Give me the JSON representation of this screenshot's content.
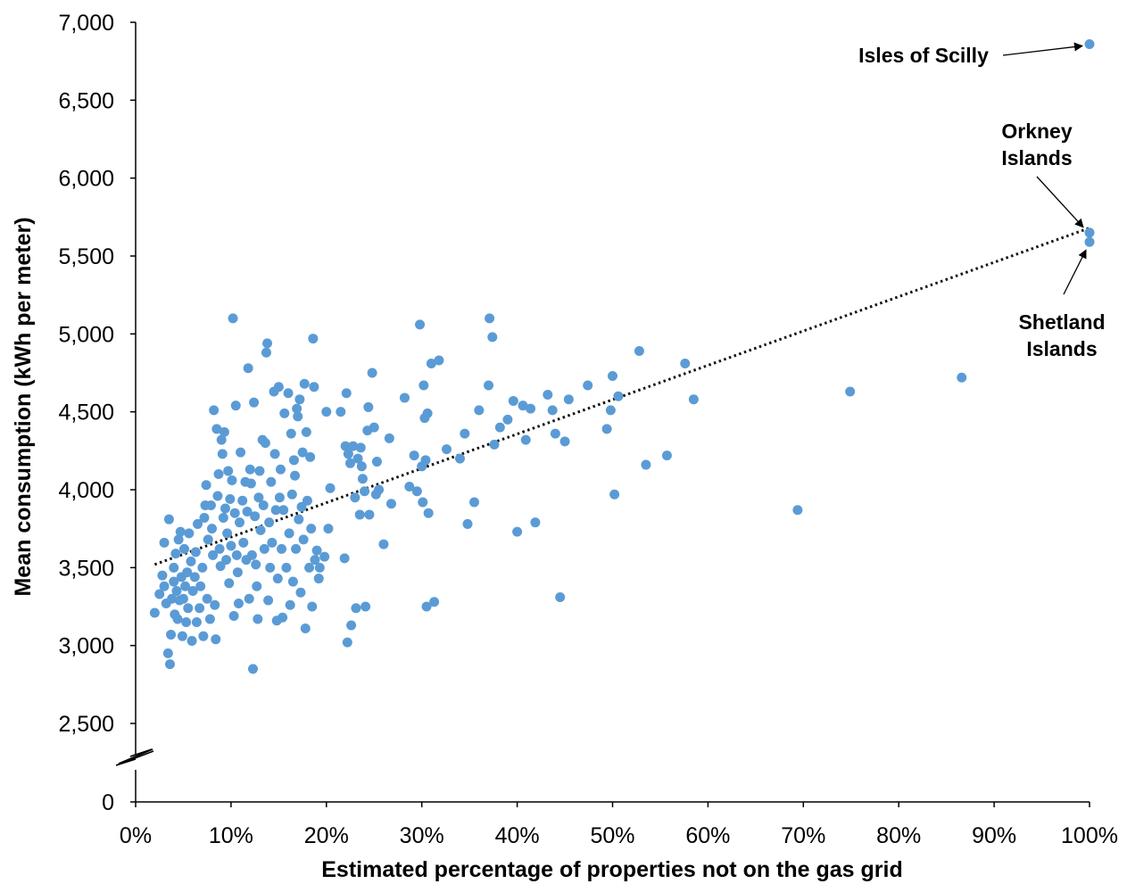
{
  "chart_data": {
    "type": "scatter",
    "xlabel": "Estimated percentage of properties not on the gas grid",
    "ylabel": "Mean consumption (kWh per meter)",
    "x_unit": "percent",
    "x_ticks": [
      "0%",
      "10%",
      "20%",
      "30%",
      "40%",
      "50%",
      "60%",
      "70%",
      "80%",
      "90%",
      "100%"
    ],
    "y_ticks": [
      "0",
      "2,500",
      "3,000",
      "3,500",
      "4,000",
      "4,500",
      "5,000",
      "5,500",
      "6,000",
      "6,500",
      "7,000"
    ],
    "xlim": [
      0,
      100
    ],
    "ylim": [
      2500,
      7000
    ],
    "y_axis_break": "between 0 and 2,500",
    "marker_color": "#5b9bd5",
    "grid": false,
    "trendline": {
      "style": "dotted",
      "color": "#111111",
      "start": [
        2,
        3520
      ],
      "end": [
        100,
        5680
      ]
    },
    "annotations": [
      {
        "text": "Isles of Scilly",
        "lines": [
          "Isles of Scilly"
        ],
        "points_to": [
          100,
          6860
        ]
      },
      {
        "text": "Orkney Islands",
        "lines": [
          "Orkney",
          "Islands"
        ],
        "points_to": [
          100,
          5650
        ]
      },
      {
        "text": "Shetland Islands",
        "lines": [
          "Shetland",
          "Islands"
        ],
        "points_to": [
          100,
          5590
        ]
      }
    ],
    "points": [
      [
        2,
        3210
      ],
      [
        2.5,
        3330
      ],
      [
        2.8,
        3450
      ],
      [
        3,
        3380
      ],
      [
        3,
        3660
      ],
      [
        3.2,
        3270
      ],
      [
        3.4,
        2950
      ],
      [
        3.5,
        3810
      ],
      [
        3.6,
        2880
      ],
      [
        3.7,
        3070
      ],
      [
        3.8,
        3300
      ],
      [
        4,
        3410
      ],
      [
        4,
        3500
      ],
      [
        4.1,
        3200
      ],
      [
        4.2,
        3590
      ],
      [
        4.3,
        3350
      ],
      [
        4.4,
        3170
      ],
      [
        4.5,
        3680
      ],
      [
        4.6,
        3290
      ],
      [
        4.7,
        3730
      ],
      [
        4.8,
        3440
      ],
      [
        4.9,
        3060
      ],
      [
        5,
        3300
      ],
      [
        5.1,
        3620
      ],
      [
        5.2,
        3380
      ],
      [
        5.3,
        3150
      ],
      [
        5.4,
        3470
      ],
      [
        5.5,
        3240
      ],
      [
        5.6,
        3720
      ],
      [
        5.8,
        3540
      ],
      [
        5.9,
        3030
      ],
      [
        6,
        3350
      ],
      [
        6.2,
        3440
      ],
      [
        6.3,
        3600
      ],
      [
        6.4,
        3150
      ],
      [
        6.5,
        3780
      ],
      [
        6.7,
        3240
      ],
      [
        6.8,
        3380
      ],
      [
        7,
        3500
      ],
      [
        7.1,
        3060
      ],
      [
        7.2,
        3820
      ],
      [
        7.3,
        3900
      ],
      [
        7.4,
        4030
      ],
      [
        7.5,
        3300
      ],
      [
        7.6,
        3680
      ],
      [
        7.8,
        3170
      ],
      [
        7.9,
        3900
      ],
      [
        8,
        3750
      ],
      [
        8.1,
        3580
      ],
      [
        8.2,
        4510
      ],
      [
        8.3,
        3260
      ],
      [
        8.4,
        3040
      ],
      [
        8.5,
        4390
      ],
      [
        8.6,
        3960
      ],
      [
        8.7,
        4100
      ],
      [
        8.8,
        3620
      ],
      [
        8.9,
        3510
      ],
      [
        9,
        4320
      ],
      [
        9.1,
        4230
      ],
      [
        9.2,
        3820
      ],
      [
        9.3,
        4370
      ],
      [
        9.4,
        3880
      ],
      [
        9.5,
        3550
      ],
      [
        9.6,
        3720
      ],
      [
        9.7,
        4120
      ],
      [
        9.8,
        3400
      ],
      [
        9.9,
        3940
      ],
      [
        10,
        3640
      ],
      [
        10.1,
        4060
      ],
      [
        10.2,
        5100
      ],
      [
        10.3,
        3190
      ],
      [
        10.4,
        3850
      ],
      [
        10.5,
        4540
      ],
      [
        10.6,
        3580
      ],
      [
        10.7,
        3470
      ],
      [
        10.8,
        3270
      ],
      [
        10.9,
        3790
      ],
      [
        11,
        4240
      ],
      [
        11.2,
        3930
      ],
      [
        11.3,
        3660
      ],
      [
        11.5,
        4050
      ],
      [
        11.6,
        3550
      ],
      [
        11.7,
        3860
      ],
      [
        11.8,
        4780
      ],
      [
        11.9,
        3300
      ],
      [
        12,
        4130
      ],
      [
        12.1,
        4040
      ],
      [
        12.2,
        3580
      ],
      [
        12.3,
        2850
      ],
      [
        12.4,
        4560
      ],
      [
        12.5,
        3830
      ],
      [
        12.6,
        3520
      ],
      [
        12.7,
        3380
      ],
      [
        12.8,
        3170
      ],
      [
        12.9,
        3950
      ],
      [
        13,
        4120
      ],
      [
        13.1,
        3740
      ],
      [
        13.3,
        4320
      ],
      [
        13.4,
        3900
      ],
      [
        13.5,
        3620
      ],
      [
        13.6,
        4300
      ],
      [
        13.7,
        4880
      ],
      [
        13.8,
        4940
      ],
      [
        13.9,
        3290
      ],
      [
        14,
        3790
      ],
      [
        14.1,
        3500
      ],
      [
        14.2,
        4050
      ],
      [
        14.3,
        3660
      ],
      [
        14.5,
        4630
      ],
      [
        14.6,
        4230
      ],
      [
        14.7,
        3870
      ],
      [
        14.8,
        3160
      ],
      [
        14.9,
        3430
      ],
      [
        15,
        4660
      ],
      [
        15.1,
        3950
      ],
      [
        15.2,
        4130
      ],
      [
        15.3,
        3620
      ],
      [
        15.4,
        3180
      ],
      [
        15.5,
        3870
      ],
      [
        15.6,
        4490
      ],
      [
        15.8,
        3500
      ],
      [
        16,
        4620
      ],
      [
        16.1,
        3720
      ],
      [
        16.2,
        3260
      ],
      [
        16.3,
        4360
      ],
      [
        16.4,
        3970
      ],
      [
        16.5,
        3410
      ],
      [
        16.6,
        4190
      ],
      [
        16.7,
        4090
      ],
      [
        16.8,
        3620
      ],
      [
        16.9,
        4520
      ],
      [
        17,
        4470
      ],
      [
        17.1,
        3810
      ],
      [
        17.2,
        4580
      ],
      [
        17.3,
        3340
      ],
      [
        17.4,
        3890
      ],
      [
        17.5,
        4240
      ],
      [
        17.6,
        3680
      ],
      [
        17.7,
        4680
      ],
      [
        17.8,
        3110
      ],
      [
        17.9,
        4370
      ],
      [
        18,
        3930
      ],
      [
        18.2,
        3500
      ],
      [
        18.3,
        4210
      ],
      [
        18.4,
        3750
      ],
      [
        18.5,
        3250
      ],
      [
        18.6,
        4970
      ],
      [
        18.7,
        4660
      ],
      [
        18.8,
        3550
      ],
      [
        19,
        3610
      ],
      [
        19.2,
        3430
      ],
      [
        19.3,
        3500
      ],
      [
        19.8,
        3570
      ],
      [
        20,
        4500
      ],
      [
        20.2,
        3750
      ],
      [
        20.4,
        4010
      ],
      [
        21.5,
        4500
      ],
      [
        21.9,
        3560
      ],
      [
        22,
        4280
      ],
      [
        22.1,
        4620
      ],
      [
        22.2,
        3020
      ],
      [
        22.3,
        4230
      ],
      [
        22.5,
        4170
      ],
      [
        22.6,
        3130
      ],
      [
        22.8,
        4280
      ],
      [
        23,
        3950
      ],
      [
        23.1,
        3240
      ],
      [
        23.3,
        4200
      ],
      [
        23.5,
        3840
      ],
      [
        23.6,
        4270
      ],
      [
        23.7,
        4150
      ],
      [
        23.8,
        4070
      ],
      [
        24,
        3990
      ],
      [
        24.1,
        3250
      ],
      [
        24.3,
        4380
      ],
      [
        24.4,
        4530
      ],
      [
        24.5,
        3840
      ],
      [
        24.8,
        4750
      ],
      [
        25,
        4400
      ],
      [
        25.2,
        3970
      ],
      [
        25.3,
        4180
      ],
      [
        25.5,
        4000
      ],
      [
        26,
        3650
      ],
      [
        26.6,
        4330
      ],
      [
        26.8,
        3910
      ],
      [
        28.2,
        4590
      ],
      [
        28.7,
        4020
      ],
      [
        29.2,
        4220
      ],
      [
        29.5,
        3990
      ],
      [
        29.8,
        5060
      ],
      [
        30,
        4150
      ],
      [
        30.1,
        3920
      ],
      [
        30.2,
        4670
      ],
      [
        30.3,
        4460
      ],
      [
        30.4,
        4190
      ],
      [
        30.5,
        3250
      ],
      [
        30.6,
        4490
      ],
      [
        30.7,
        3850
      ],
      [
        31,
        4810
      ],
      [
        31.3,
        3280
      ],
      [
        31.8,
        4830
      ],
      [
        32.6,
        4260
      ],
      [
        34,
        4200
      ],
      [
        34.5,
        4360
      ],
      [
        34.8,
        3780
      ],
      [
        35.5,
        3920
      ],
      [
        36,
        4510
      ],
      [
        37,
        4670
      ],
      [
        37.1,
        5100
      ],
      [
        37.4,
        4980
      ],
      [
        37.6,
        4290
      ],
      [
        38.2,
        4400
      ],
      [
        39,
        4450
      ],
      [
        39.6,
        4570
      ],
      [
        40,
        3730
      ],
      [
        40.6,
        4540
      ],
      [
        40.9,
        4320
      ],
      [
        41.4,
        4520
      ],
      [
        41.9,
        3790
      ],
      [
        43.2,
        4610
      ],
      [
        43.7,
        4510
      ],
      [
        44,
        4360
      ],
      [
        44.5,
        3310
      ],
      [
        45,
        4310
      ],
      [
        45.4,
        4580
      ],
      [
        47.4,
        4670
      ],
      [
        49.4,
        4390
      ],
      [
        49.8,
        4510
      ],
      [
        50,
        4730
      ],
      [
        50.2,
        3970
      ],
      [
        50.6,
        4600
      ],
      [
        52.8,
        4890
      ],
      [
        53.5,
        4160
      ],
      [
        55.7,
        4220
      ],
      [
        57.6,
        4810
      ],
      [
        58.5,
        4580
      ],
      [
        69.4,
        3870
      ],
      [
        74.9,
        4630
      ],
      [
        86.6,
        4720
      ],
      [
        100,
        6860
      ],
      [
        100,
        5650
      ],
      [
        100,
        5590
      ]
    ]
  }
}
